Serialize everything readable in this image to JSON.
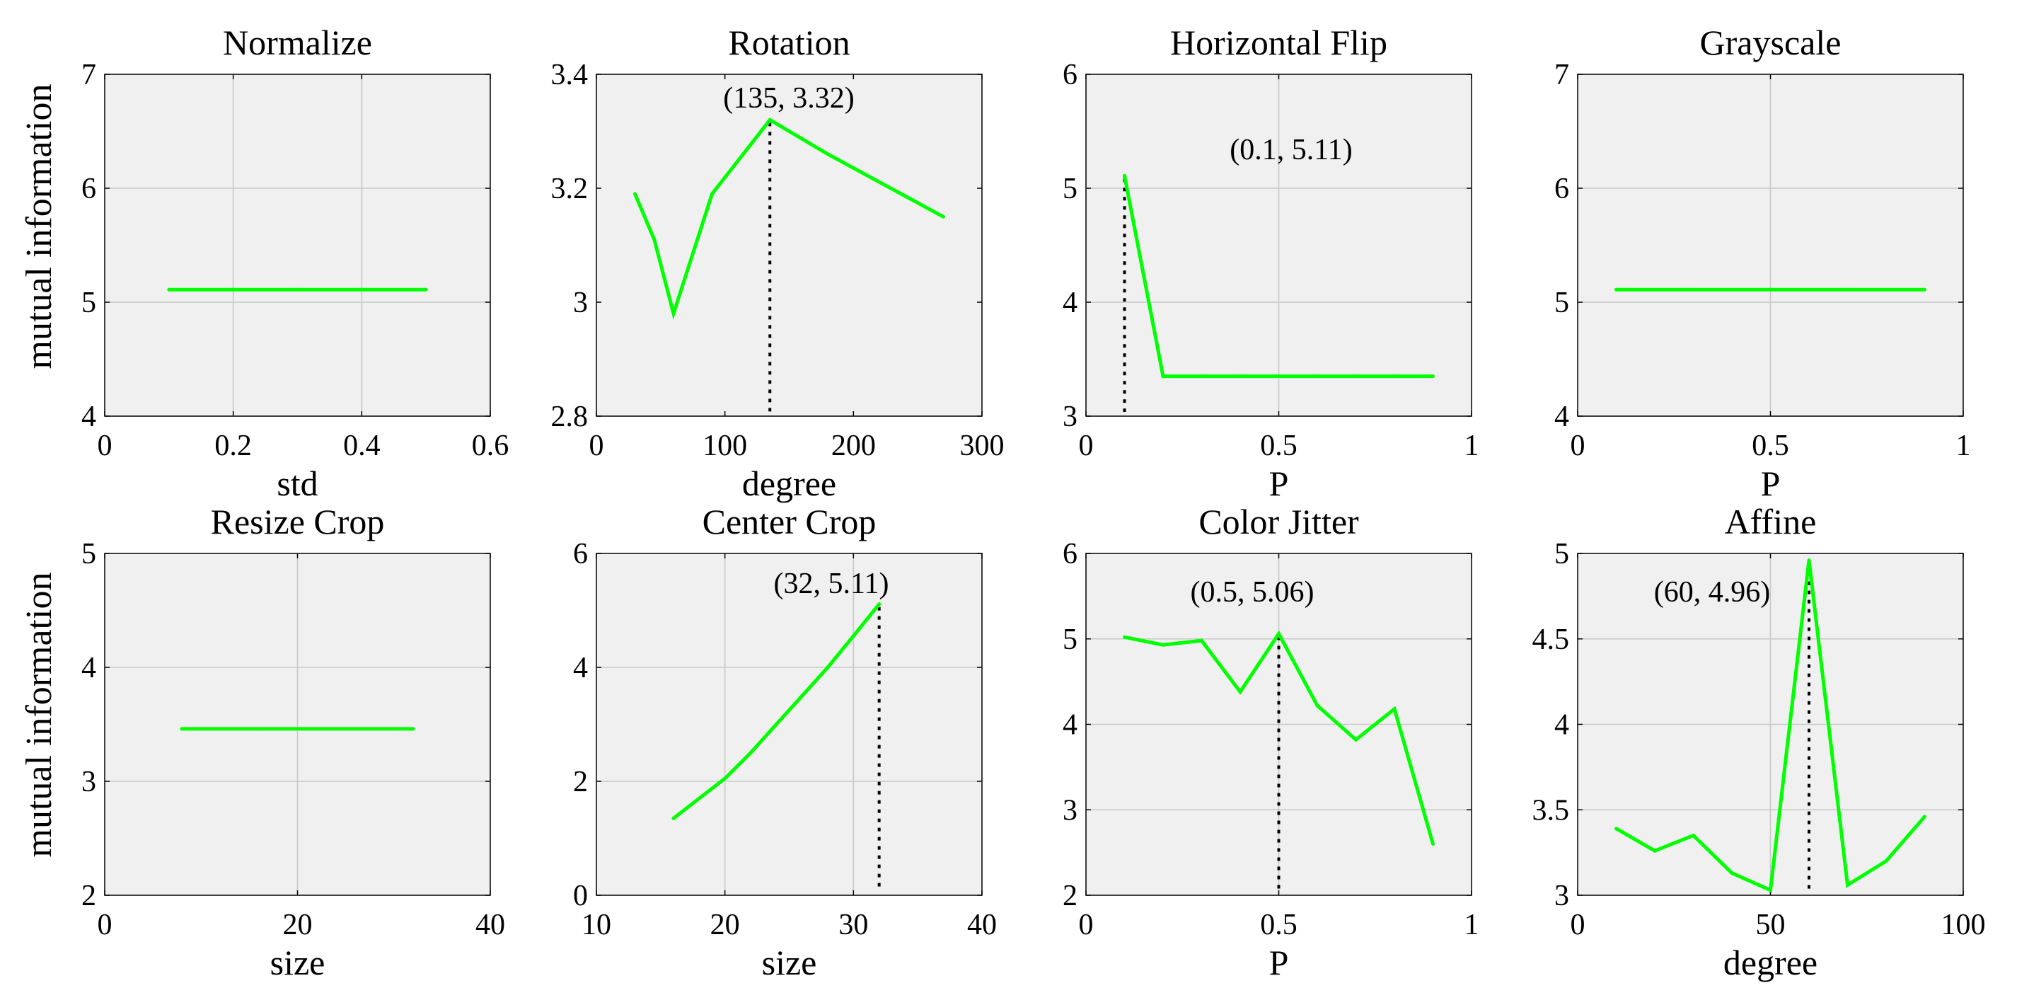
{
  "figure": {
    "ylabel_rows": [
      "mutual information",
      "mutual information"
    ]
  },
  "chart_data": [
    {
      "type": "line",
      "title": "Normalize",
      "xlabel": "std",
      "ylabel": "mutual information",
      "xlim": [
        0,
        0.6
      ],
      "ylim": [
        4,
        7
      ],
      "xticks": [
        0,
        0.2,
        0.4,
        0.6
      ],
      "yticks": [
        4,
        5,
        6,
        7
      ],
      "xtick_labels": [
        "0",
        "0.2",
        "0.4",
        "0.6"
      ],
      "ytick_labels": [
        "4",
        "5",
        "6",
        "7"
      ],
      "grid": true,
      "x": [
        0.1,
        0.2,
        0.3,
        0.4,
        0.5
      ],
      "y": [
        5.11,
        5.11,
        5.11,
        5.11,
        5.11
      ]
    },
    {
      "type": "line",
      "title": "Rotation",
      "xlabel": "degree",
      "ylabel": "",
      "xlim": [
        0,
        300
      ],
      "ylim": [
        2.8,
        3.4
      ],
      "xticks": [
        0,
        100,
        200,
        300
      ],
      "yticks": [
        2.8,
        3,
        3.2,
        3.4
      ],
      "xtick_labels": [
        "0",
        "100",
        "200",
        "300"
      ],
      "ytick_labels": [
        "2.8",
        "3",
        "3.2",
        "3.4"
      ],
      "grid": false,
      "x": [
        30,
        45,
        60,
        90,
        135,
        180,
        270
      ],
      "y": [
        3.19,
        3.11,
        2.98,
        3.19,
        3.32,
        3.26,
        3.15
      ],
      "marker": {
        "x": 135,
        "y": 3.32,
        "label": "(135, 3.32)"
      }
    },
    {
      "type": "line",
      "title": "Horizontal Flip",
      "xlabel": "P",
      "ylabel": "",
      "xlim": [
        0,
        1
      ],
      "ylim": [
        3,
        6
      ],
      "xticks": [
        0,
        0.5,
        1
      ],
      "yticks": [
        3,
        4,
        5,
        6
      ],
      "xtick_labels": [
        "0",
        "0.5",
        "1"
      ],
      "ytick_labels": [
        "3",
        "4",
        "5",
        "6"
      ],
      "grid": true,
      "x": [
        0.1,
        0.2,
        0.3,
        0.4,
        0.5,
        0.6,
        0.7,
        0.8,
        0.9
      ],
      "y": [
        5.11,
        3.35,
        3.35,
        3.35,
        3.35,
        3.35,
        3.35,
        3.35,
        3.35
      ],
      "marker": {
        "x": 0.1,
        "y": 5.11,
        "label": "(0.1, 5.11)"
      }
    },
    {
      "type": "line",
      "title": "Grayscale",
      "xlabel": "P",
      "ylabel": "",
      "xlim": [
        0,
        1
      ],
      "ylim": [
        4,
        7
      ],
      "xticks": [
        0,
        0.5,
        1
      ],
      "yticks": [
        4,
        5,
        6,
        7
      ],
      "xtick_labels": [
        "0",
        "0.5",
        "1"
      ],
      "ytick_labels": [
        "4",
        "5",
        "6",
        "7"
      ],
      "grid": true,
      "x": [
        0.1,
        0.3,
        0.5,
        0.7,
        0.9
      ],
      "y": [
        5.11,
        5.11,
        5.11,
        5.11,
        5.11
      ]
    },
    {
      "type": "line",
      "title": "Resize Crop",
      "xlabel": "size",
      "ylabel": "mutual information",
      "xlim": [
        0,
        40
      ],
      "ylim": [
        2,
        5
      ],
      "xticks": [
        0,
        20,
        40
      ],
      "yticks": [
        2,
        3,
        4,
        5
      ],
      "xtick_labels": [
        "0",
        "20",
        "40"
      ],
      "ytick_labels": [
        "2",
        "3",
        "4",
        "5"
      ],
      "grid": true,
      "x": [
        8,
        16,
        24,
        32
      ],
      "y": [
        3.46,
        3.46,
        3.46,
        3.46
      ]
    },
    {
      "type": "line",
      "title": "Center Crop",
      "xlabel": "size",
      "ylabel": "",
      "xlim": [
        10,
        40
      ],
      "ylim": [
        0,
        6
      ],
      "xticks": [
        10,
        20,
        30,
        40
      ],
      "yticks": [
        0,
        2,
        4,
        6
      ],
      "xtick_labels": [
        "10",
        "20",
        "30",
        "40"
      ],
      "ytick_labels": [
        "0",
        "2",
        "4",
        "6"
      ],
      "grid": true,
      "x": [
        16,
        20,
        22,
        24,
        26,
        28,
        30,
        32
      ],
      "y": [
        1.35,
        2.05,
        2.5,
        3.0,
        3.5,
        4.0,
        4.55,
        5.11
      ],
      "marker": {
        "x": 32,
        "y": 5.11,
        "label": "(32, 5.11)"
      }
    },
    {
      "type": "line",
      "title": "Color Jitter",
      "xlabel": "P",
      "ylabel": "",
      "xlim": [
        0,
        1
      ],
      "ylim": [
        2,
        6
      ],
      "xticks": [
        0,
        0.5,
        1
      ],
      "yticks": [
        2,
        3,
        4,
        5,
        6
      ],
      "xtick_labels": [
        "0",
        "0.5",
        "1"
      ],
      "ytick_labels": [
        "2",
        "3",
        "4",
        "5",
        "6"
      ],
      "grid": true,
      "x": [
        0.1,
        0.2,
        0.3,
        0.4,
        0.5,
        0.6,
        0.7,
        0.8,
        0.9
      ],
      "y": [
        5.02,
        4.93,
        4.98,
        4.38,
        5.06,
        4.22,
        3.82,
        4.18,
        2.6
      ],
      "marker": {
        "x": 0.5,
        "y": 5.06,
        "label": "(0.5, 5.06)"
      }
    },
    {
      "type": "line",
      "title": "Affine",
      "xlabel": "degree",
      "ylabel": "",
      "xlim": [
        0,
        100
      ],
      "ylim": [
        3,
        5
      ],
      "xticks": [
        0,
        50,
        100
      ],
      "yticks": [
        3,
        3.5,
        4,
        4.5,
        5
      ],
      "xtick_labels": [
        "0",
        "50",
        "100"
      ],
      "ytick_labels": [
        "3",
        "3.5",
        "4",
        "4.5",
        "5"
      ],
      "grid": true,
      "x": [
        10,
        20,
        30,
        40,
        50,
        60,
        70,
        80,
        90
      ],
      "y": [
        3.39,
        3.26,
        3.35,
        3.13,
        3.03,
        4.96,
        3.06,
        3.2,
        3.46
      ],
      "marker": {
        "x": 60,
        "y": 4.96,
        "label": "(60, 4.96)"
      }
    }
  ]
}
